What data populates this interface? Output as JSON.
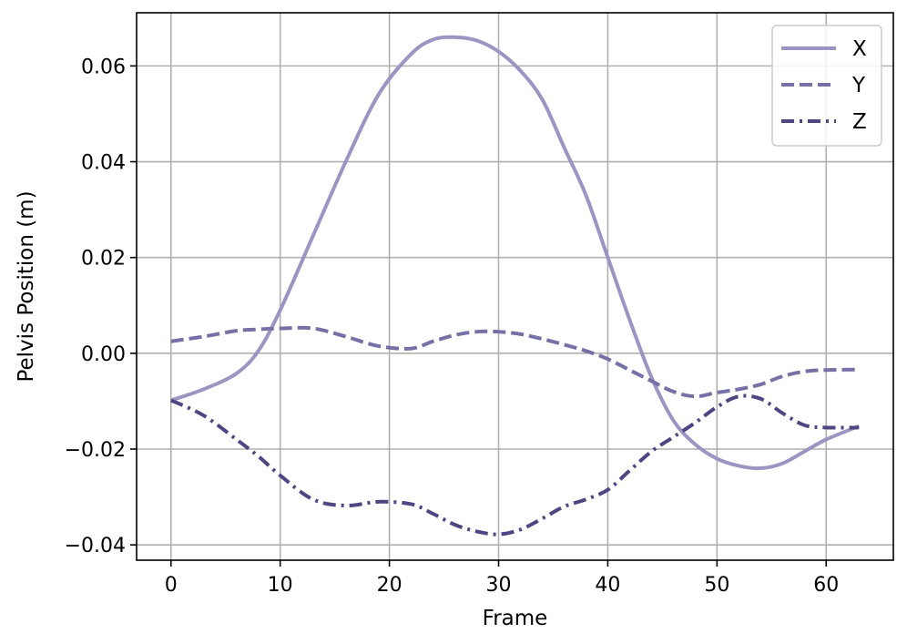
{
  "chart_data": {
    "type": "line",
    "xlabel": "Frame",
    "ylabel": "Pelvis Position (m)",
    "xlim": [
      -3.15,
      66.15
    ],
    "ylim": [
      -0.0432,
      0.0711
    ],
    "xticks": [
      0,
      10,
      20,
      30,
      40,
      50,
      60
    ],
    "xtick_labels": [
      "0",
      "10",
      "20",
      "30",
      "40",
      "50",
      "60"
    ],
    "yticks": [
      -0.04,
      -0.02,
      0.0,
      0.02,
      0.04,
      0.06
    ],
    "ytick_labels": [
      "−0.04",
      "−0.02",
      "0.00",
      "0.02",
      "0.04",
      "0.06"
    ],
    "grid": true,
    "legend_position": "top-right",
    "x": [
      0,
      3,
      6,
      8,
      10,
      13,
      16,
      19,
      22,
      24,
      26,
      28,
      30,
      32,
      34,
      36,
      38,
      40,
      42,
      44,
      46,
      48,
      50,
      52,
      54,
      56,
      58,
      60,
      63
    ],
    "series": [
      {
        "name": "X",
        "color": "#9d94c4",
        "dash": "solid",
        "values": [
          -0.0098,
          -0.0075,
          -0.0042,
          0.0005,
          0.009,
          0.0245,
          0.04,
          0.054,
          0.0625,
          0.0655,
          0.066,
          0.0653,
          0.063,
          0.059,
          0.053,
          0.043,
          0.033,
          0.02,
          0.007,
          -0.005,
          -0.014,
          -0.019,
          -0.022,
          -0.0235,
          -0.024,
          -0.023,
          -0.0205,
          -0.018,
          -0.0152
        ]
      },
      {
        "name": "Y",
        "color": "#7570a6",
        "dash": "dashed",
        "values": [
          0.0025,
          0.0035,
          0.0047,
          0.005,
          0.0052,
          0.0052,
          0.0035,
          0.0015,
          0.001,
          0.0025,
          0.0038,
          0.0045,
          0.0045,
          0.004,
          0.003,
          0.0018,
          0.0005,
          -0.0012,
          -0.0035,
          -0.0058,
          -0.008,
          -0.009,
          -0.0082,
          -0.0075,
          -0.0065,
          -0.0048,
          -0.0038,
          -0.0035,
          -0.0034
        ]
      },
      {
        "name": "Z",
        "color": "#4e4683",
        "dash": "dashdot",
        "values": [
          -0.0098,
          -0.013,
          -0.018,
          -0.0215,
          -0.0255,
          -0.0305,
          -0.0318,
          -0.031,
          -0.0315,
          -0.0335,
          -0.0358,
          -0.0372,
          -0.0378,
          -0.0368,
          -0.0345,
          -0.032,
          -0.0305,
          -0.0285,
          -0.0245,
          -0.0205,
          -0.0175,
          -0.0145,
          -0.0112,
          -0.009,
          -0.0095,
          -0.0125,
          -0.015,
          -0.0155,
          -0.0155
        ]
      }
    ]
  }
}
